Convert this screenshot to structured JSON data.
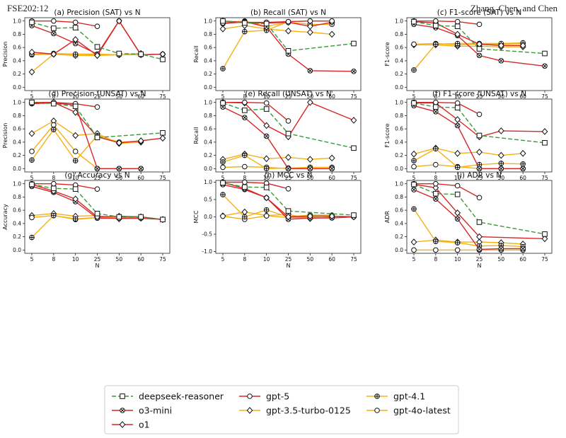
{
  "header": {
    "left": "FSE202:12",
    "right": "Zhang, Chen, and Chen"
  },
  "legend": {
    "entries": [
      {
        "name": "deepseek-reasoner",
        "color": "#3a9a3a",
        "marker": "square",
        "dash": true
      },
      {
        "name": "gpt-5",
        "color": "#d62728",
        "marker": "circle",
        "dash": false
      },
      {
        "name": "gpt-4.1",
        "color": "#f5b016",
        "marker": "plus",
        "dash": false
      },
      {
        "name": "o3-mini",
        "color": "#d62728",
        "marker": "x",
        "dash": false
      },
      {
        "name": "gpt-3.5-turbo-0125",
        "color": "#f5b016",
        "marker": "diamond",
        "dash": false
      },
      {
        "name": "gpt-4o-latest",
        "color": "#f5b016",
        "marker": "circle",
        "dash": false
      },
      {
        "name": "o1",
        "color": "#d62728",
        "marker": "diamond",
        "dash": false
      }
    ]
  },
  "chart_data": [
    {
      "type": "line",
      "title": "(a) Precision (SAT) vs N",
      "ylabel": "Precision",
      "xlabel": "",
      "ylim": [
        -0.05,
        1.05
      ],
      "yticks": [
        0.0,
        0.2,
        0.4,
        0.6,
        0.8,
        1.0
      ],
      "categories": [
        "5",
        "8",
        "10",
        "25",
        "50",
        "60",
        "75"
      ],
      "series": [
        {
          "name": "deepseek-reasoner",
          "values": [
            0.98,
            0.89,
            0.9,
            0.61,
            0.51,
            0.5,
            0.42
          ]
        },
        {
          "name": "gpt-5",
          "values": [
            1.0,
            1.0,
            0.98,
            0.92,
            null,
            null,
            null
          ]
        },
        {
          "name": "gpt-4.1",
          "values": [
            0.5,
            0.51,
            0.5,
            0.5,
            0.49,
            0.5,
            null
          ]
        },
        {
          "name": "o3-mini",
          "values": [
            0.93,
            0.81,
            0.66,
            0.5,
            1.0,
            0.49,
            0.5
          ]
        },
        {
          "name": "gpt-3.5-turbo-0125",
          "values": [
            0.23,
            0.5,
            0.48,
            0.48,
            0.49,
            0.51,
            null
          ]
        },
        {
          "name": "gpt-4o-latest",
          "values": [
            0.49,
            0.5,
            0.48,
            0.49,
            0.49,
            0.49,
            null
          ]
        },
        {
          "name": "o1",
          "values": [
            0.53,
            0.5,
            0.72,
            0.48,
            1.0,
            0.49,
            0.5
          ]
        }
      ]
    },
    {
      "type": "line",
      "title": "(b) Recall (SAT) vs N",
      "ylabel": "Recall",
      "xlabel": "",
      "ylim": [
        -0.05,
        1.05
      ],
      "yticks": [
        0.0,
        0.2,
        0.4,
        0.6,
        0.8,
        1.0
      ],
      "categories": [
        "5",
        "8",
        "10",
        "25",
        "50",
        "60",
        "75"
      ],
      "series": [
        {
          "name": "deepseek-reasoner",
          "values": [
            1.0,
            0.97,
            0.96,
            0.55,
            null,
            null,
            0.66
          ]
        },
        {
          "name": "gpt-5",
          "values": [
            0.97,
            0.98,
            0.98,
            0.99,
            1.0,
            1.0,
            null
          ]
        },
        {
          "name": "gpt-4.1",
          "values": [
            0.28,
            0.84,
            0.86,
            0.99,
            1.0,
            1.0,
            null
          ]
        },
        {
          "name": "o3-mini",
          "values": [
            0.96,
            0.99,
            0.91,
            0.5,
            0.25,
            null,
            0.24
          ]
        },
        {
          "name": "gpt-3.5-turbo-0125",
          "values": [
            0.88,
            0.93,
            0.88,
            0.85,
            0.83,
            0.8,
            null
          ]
        },
        {
          "name": "gpt-4o-latest",
          "values": [
            0.97,
            1.0,
            0.92,
            0.98,
            0.95,
            0.95,
            null
          ]
        },
        {
          "name": "o1",
          "values": [
            1.0,
            0.98,
            0.97,
            0.98,
            0.92,
            0.98,
            null
          ]
        }
      ]
    },
    {
      "type": "line",
      "title": "(c) F1-score (SAT) vs N",
      "ylabel": "F1-score",
      "xlabel": "",
      "ylim": [
        -0.05,
        1.05
      ],
      "yticks": [
        0.0,
        0.2,
        0.4,
        0.6,
        0.8,
        1.0
      ],
      "categories": [
        "5",
        "8",
        "10",
        "25",
        "50",
        "60",
        "75"
      ],
      "series": [
        {
          "name": "deepseek-reasoner",
          "values": [
            0.99,
            0.93,
            0.92,
            0.58,
            null,
            null,
            0.51
          ]
        },
        {
          "name": "gpt-5",
          "values": [
            1.0,
            1.0,
            0.99,
            0.95,
            null,
            null,
            null
          ]
        },
        {
          "name": "gpt-4.1",
          "values": [
            0.26,
            0.65,
            0.66,
            0.66,
            0.66,
            0.67,
            null
          ]
        },
        {
          "name": "o3-mini",
          "values": [
            0.95,
            0.9,
            0.78,
            0.48,
            0.4,
            null,
            0.32
          ]
        },
        {
          "name": "gpt-3.5-turbo-0125",
          "values": [
            0.64,
            0.64,
            0.62,
            0.62,
            0.61,
            0.61,
            null
          ]
        },
        {
          "name": "gpt-4o-latest",
          "values": [
            0.65,
            0.66,
            0.64,
            0.65,
            0.65,
            0.66,
            null
          ]
        },
        {
          "name": "o1",
          "values": [
            0.99,
            0.97,
            0.8,
            0.65,
            0.63,
            0.63,
            null
          ]
        }
      ]
    },
    {
      "type": "line",
      "title": "(d) Precision (UNSAT) vs N",
      "ylabel": "Precision",
      "xlabel": "",
      "ylim": [
        -0.05,
        1.05
      ],
      "yticks": [
        0.0,
        0.2,
        0.4,
        0.6,
        0.8,
        1.0
      ],
      "categories": [
        "5",
        "8",
        "10",
        "25",
        "50",
        "60",
        "75"
      ],
      "series": [
        {
          "name": "deepseek-reasoner",
          "values": [
            1.0,
            0.98,
            0.94,
            0.47,
            null,
            null,
            0.54
          ]
        },
        {
          "name": "gpt-5",
          "values": [
            1.0,
            1.0,
            0.98,
            0.93,
            null,
            null,
            null
          ]
        },
        {
          "name": "gpt-4.1",
          "values": [
            0.13,
            0.59,
            0.12,
            0.5,
            0.4,
            0.41,
            null
          ]
        },
        {
          "name": "o3-mini",
          "values": [
            0.98,
            0.99,
            0.96,
            0.0,
            0.0,
            0.0,
            null
          ]
        },
        {
          "name": "gpt-3.5-turbo-0125",
          "values": [
            0.53,
            0.72,
            0.5,
            0.53,
            0.38,
            0.4,
            null
          ]
        },
        {
          "name": "gpt-4o-latest",
          "values": [
            0.26,
            0.66,
            0.26,
            0.0,
            0.0,
            0.0,
            null
          ]
        },
        {
          "name": "o1",
          "values": [
            0.99,
            1.0,
            0.85,
            0.48,
            0.39,
            0.42,
            0.46
          ]
        }
      ]
    },
    {
      "type": "line",
      "title": "(e) Recall (UNSAT) vs N",
      "ylabel": "Recall",
      "xlabel": "",
      "ylim": [
        -0.05,
        1.05
      ],
      "yticks": [
        0.0,
        0.2,
        0.4,
        0.6,
        0.8,
        1.0
      ],
      "categories": [
        "5",
        "8",
        "10",
        "25",
        "50",
        "60",
        "75"
      ],
      "series": [
        {
          "name": "deepseek-reasoner",
          "values": [
            0.99,
            0.88,
            0.9,
            0.53,
            null,
            null,
            0.31
          ]
        },
        {
          "name": "gpt-5",
          "values": [
            1.0,
            1.0,
            0.99,
            0.72,
            null,
            null,
            null
          ]
        },
        {
          "name": "gpt-4.1",
          "values": [
            0.1,
            0.2,
            0.0,
            0.01,
            0.02,
            0.02,
            null
          ]
        },
        {
          "name": "o3-mini",
          "values": [
            0.93,
            0.77,
            0.49,
            0.0,
            0.0,
            0.0,
            null
          ]
        },
        {
          "name": "gpt-3.5-turbo-0125",
          "values": [
            0.14,
            0.22,
            0.15,
            0.17,
            0.14,
            0.16,
            null
          ]
        },
        {
          "name": "gpt-4o-latest",
          "values": [
            0.02,
            0.03,
            0.02,
            0.0,
            0.0,
            0.0,
            null
          ]
        },
        {
          "name": "o1",
          "values": [
            1.0,
            0.99,
            0.65,
            0.48,
            1.0,
            null,
            0.73
          ]
        }
      ]
    },
    {
      "type": "line",
      "title": "(f) F1-score (UNSAT) vs N",
      "ylabel": "F1-score",
      "xlabel": "",
      "ylim": [
        -0.05,
        1.05
      ],
      "yticks": [
        0.0,
        0.2,
        0.4,
        0.6,
        0.8,
        1.0
      ],
      "categories": [
        "5",
        "8",
        "10",
        "25",
        "50",
        "60",
        "75"
      ],
      "series": [
        {
          "name": "deepseek-reasoner",
          "values": [
            0.99,
            0.93,
            0.92,
            0.5,
            null,
            null,
            0.39
          ]
        },
        {
          "name": "gpt-5",
          "values": [
            1.0,
            1.0,
            0.99,
            0.82,
            null,
            null,
            null
          ]
        },
        {
          "name": "gpt-4.1",
          "values": [
            0.12,
            0.3,
            0.02,
            0.06,
            0.08,
            0.07,
            null
          ]
        },
        {
          "name": "o3-mini",
          "values": [
            0.95,
            0.86,
            0.65,
            0.0,
            0.0,
            0.0,
            null
          ]
        },
        {
          "name": "gpt-3.5-turbo-0125",
          "values": [
            0.22,
            0.31,
            0.23,
            0.25,
            0.2,
            0.23,
            null
          ]
        },
        {
          "name": "gpt-4o-latest",
          "values": [
            0.03,
            0.06,
            0.03,
            0.0,
            0.0,
            0.0,
            null
          ]
        },
        {
          "name": "o1",
          "values": [
            0.99,
            0.99,
            0.74,
            0.48,
            0.57,
            null,
            0.56
          ]
        }
      ]
    },
    {
      "type": "line",
      "title": "(g) Accuracy vs N",
      "ylabel": "Accuracy",
      "xlabel": "N",
      "ylim": [
        -0.05,
        1.05
      ],
      "yticks": [
        0.0,
        0.2,
        0.4,
        0.6,
        0.8,
        1.0
      ],
      "categories": [
        "5",
        "8",
        "10",
        "25",
        "50",
        "60",
        "75"
      ],
      "series": [
        {
          "name": "deepseek-reasoner",
          "values": [
            0.99,
            0.93,
            0.92,
            0.55,
            0.5,
            0.5,
            0.46
          ]
        },
        {
          "name": "gpt-5",
          "values": [
            1.0,
            1.0,
            0.98,
            0.92,
            null,
            null,
            null
          ]
        },
        {
          "name": "gpt-4.1",
          "values": [
            0.19,
            0.52,
            0.47,
            0.49,
            0.49,
            0.49,
            null
          ]
        },
        {
          "name": "o3-mini",
          "values": [
            0.96,
            0.87,
            0.73,
            0.48,
            0.48,
            0.48,
            0.46
          ]
        },
        {
          "name": "gpt-3.5-turbo-0125",
          "values": [
            0.52,
            0.55,
            0.51,
            0.52,
            0.47,
            0.48,
            null
          ]
        },
        {
          "name": "gpt-4o-latest",
          "values": [
            0.49,
            0.52,
            0.46,
            0.49,
            0.49,
            0.49,
            null
          ]
        },
        {
          "name": "o1",
          "values": [
            0.99,
            0.89,
            0.77,
            0.5,
            0.51,
            0.5,
            0.46
          ]
        }
      ]
    },
    {
      "type": "line",
      "title": "(h) MCC vs N",
      "ylabel": "MCC",
      "xlabel": "N",
      "ylim": [
        -1.05,
        1.05
      ],
      "yticks": [
        -1.0,
        -0.5,
        0.0,
        0.5,
        1.0
      ],
      "categories": [
        "5",
        "8",
        "10",
        "25",
        "50",
        "60",
        "75"
      ],
      "series": [
        {
          "name": "deepseek-reasoner",
          "values": [
            0.98,
            0.86,
            0.85,
            0.17,
            null,
            null,
            0.05
          ]
        },
        {
          "name": "gpt-5",
          "values": [
            1.0,
            1.0,
            0.97,
            0.81,
            null,
            null,
            null
          ]
        },
        {
          "name": "gpt-4.1",
          "values": [
            0.64,
            0.0,
            0.2,
            0.0,
            0.05,
            0.05,
            null
          ]
        },
        {
          "name": "o3-mini",
          "values": [
            0.93,
            0.79,
            0.55,
            -0.07,
            -0.03,
            -0.03,
            0.0
          ]
        },
        {
          "name": "gpt-3.5-turbo-0125",
          "values": [
            0.03,
            0.14,
            0.04,
            0.07,
            -0.05,
            0.0,
            null
          ]
        },
        {
          "name": "gpt-4o-latest",
          "values": [
            0.02,
            -0.07,
            0.03,
            -0.02,
            -0.02,
            -0.03,
            null
          ]
        },
        {
          "name": "o1",
          "values": [
            0.99,
            0.82,
            0.55,
            0.0,
            0.02,
            0.02,
            0.0
          ]
        }
      ]
    },
    {
      "type": "line",
      "title": "(i) ADR vs N",
      "ylabel": "ADR",
      "xlabel": "N",
      "ylim": [
        -0.05,
        1.05
      ],
      "yticks": [
        0.0,
        0.2,
        0.4,
        0.6,
        0.8,
        1.0
      ],
      "categories": [
        "5",
        "8",
        "10",
        "25",
        "50",
        "60",
        "75"
      ],
      "series": [
        {
          "name": "deepseek-reasoner",
          "values": [
            0.99,
            0.85,
            0.84,
            0.42,
            null,
            null,
            0.24
          ]
        },
        {
          "name": "gpt-5",
          "values": [
            1.0,
            1.0,
            0.97,
            0.79,
            null,
            null,
            null
          ]
        },
        {
          "name": "gpt-4.1",
          "values": [
            0.62,
            0.13,
            0.11,
            0.06,
            0.07,
            0.05,
            null
          ]
        },
        {
          "name": "o3-mini",
          "values": [
            0.91,
            0.77,
            0.47,
            0.01,
            0.02,
            0.02,
            null
          ]
        },
        {
          "name": "gpt-3.5-turbo-0125",
          "values": [
            0.12,
            0.15,
            0.12,
            0.12,
            0.11,
            0.09,
            null
          ]
        },
        {
          "name": "gpt-4o-latest",
          "values": [
            0.0,
            0.0,
            0.0,
            0.0,
            0.0,
            0.0,
            null
          ]
        },
        {
          "name": "o1",
          "values": [
            0.99,
            0.94,
            0.56,
            0.2,
            null,
            null,
            0.17
          ]
        }
      ]
    }
  ]
}
